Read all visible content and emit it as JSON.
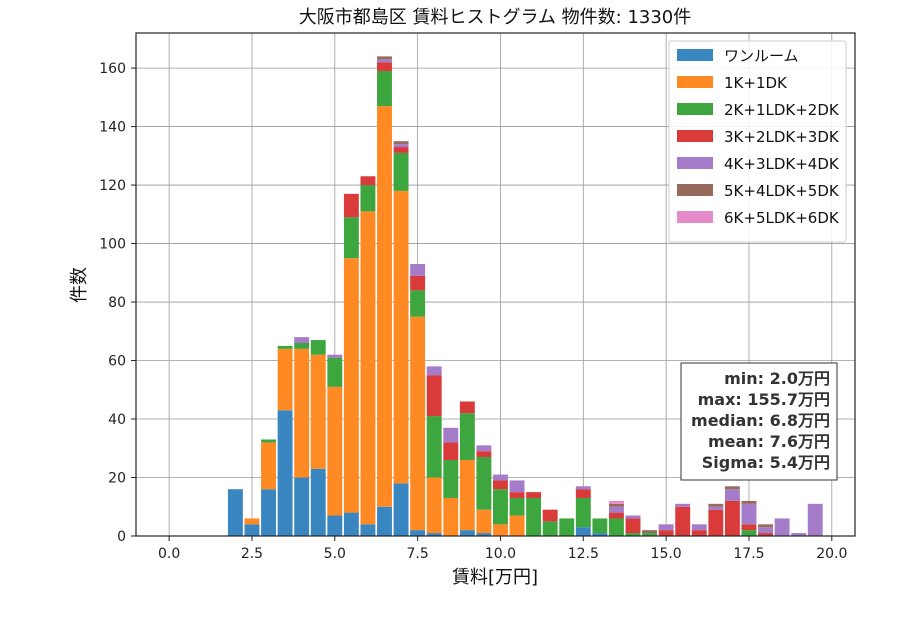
{
  "chart_data": {
    "type": "bar",
    "stacked": true,
    "title": "大阪市都島区 賃料ヒストグラム  物件数: 1330件",
    "xlabel": "賃料[万円]",
    "ylabel": "件数",
    "xlim": [
      -1.0,
      20.7
    ],
    "ylim": [
      0,
      172
    ],
    "xticks": [
      "0.0",
      "2.5",
      "5.0",
      "7.5",
      "10.0",
      "12.5",
      "15.0",
      "17.5",
      "20.0"
    ],
    "yticks": [
      "0",
      "20",
      "40",
      "60",
      "80",
      "100",
      "120",
      "140",
      "160"
    ],
    "grid": true,
    "legend_position": "top-right",
    "bin_width": 0.5,
    "x": [
      2.0,
      2.5,
      3.0,
      3.5,
      4.0,
      4.5,
      5.0,
      5.5,
      6.0,
      6.5,
      7.0,
      7.5,
      8.0,
      8.5,
      9.0,
      9.5,
      10.0,
      10.5,
      11.0,
      11.5,
      12.0,
      12.5,
      13.0,
      13.5,
      14.0,
      14.5,
      15.0,
      15.5,
      16.0,
      16.5,
      17.0,
      17.5,
      18.0,
      18.5,
      19.0,
      19.5
    ],
    "series": [
      {
        "name": "ワンルーム",
        "color": "#3a86c0",
        "values": [
          16,
          4,
          16,
          43,
          20,
          23,
          7,
          8,
          4,
          10,
          18,
          2,
          1,
          0,
          2,
          1,
          0,
          0,
          0,
          0,
          0,
          3,
          1,
          0,
          0,
          0,
          0,
          0,
          0,
          0,
          0,
          0,
          0,
          0,
          0,
          0
        ]
      },
      {
        "name": "1K+1DK",
        "color": "#ff8a24",
        "values": [
          0,
          2,
          16,
          21,
          44,
          39,
          44,
          87,
          107,
          137,
          100,
          73,
          19,
          13,
          24,
          8,
          4,
          7,
          0,
          0,
          0,
          0,
          0,
          0,
          0,
          0,
          0,
          0,
          0,
          0,
          0,
          0,
          0,
          0,
          0,
          0
        ]
      },
      {
        "name": "2K+1LDK+2DK",
        "color": "#3ea63e",
        "values": [
          0,
          0,
          1,
          1,
          2,
          5,
          10,
          14,
          9,
          12,
          13,
          9,
          21,
          13,
          16,
          18,
          12,
          6,
          13,
          5,
          6,
          10,
          5,
          6,
          1,
          1,
          0,
          0,
          0,
          0,
          0,
          2,
          0,
          0,
          0,
          0
        ]
      },
      {
        "name": "3K+2LDK+3DK",
        "color": "#d93a3a",
        "values": [
          0,
          0,
          0,
          0,
          0,
          0,
          0,
          8,
          3,
          3,
          2,
          5,
          14,
          6,
          4,
          2,
          3,
          2,
          2,
          4,
          0,
          3,
          0,
          2,
          5,
          0,
          2,
          10,
          2,
          9,
          12,
          2,
          1,
          0,
          0,
          0
        ]
      },
      {
        "name": "4K+3LDK+4DK",
        "color": "#a57cc9",
        "values": [
          0,
          0,
          0,
          0,
          2,
          0,
          1,
          0,
          0,
          1,
          1,
          4,
          3,
          5,
          0,
          2,
          2,
          4,
          0,
          0,
          0,
          1,
          0,
          2,
          1,
          0,
          2,
          1,
          2,
          1,
          4,
          7,
          2,
          6,
          1,
          11
        ]
      },
      {
        "name": "5K+4LDK+5DK",
        "color": "#976b5c",
        "values": [
          0,
          0,
          0,
          0,
          0,
          0,
          0,
          0,
          0,
          1,
          1,
          0,
          0,
          0,
          0,
          0,
          0,
          0,
          0,
          0,
          0,
          0,
          0,
          1,
          0,
          1,
          0,
          0,
          0,
          1,
          1,
          1,
          1,
          0,
          0,
          0
        ]
      },
      {
        "name": "6K+5LDK+6DK",
        "color": "#e58bcb",
        "values": [
          0,
          0,
          0,
          0,
          0,
          0,
          0,
          0,
          0,
          0,
          0,
          0,
          0,
          0,
          0,
          0,
          0,
          0,
          0,
          0,
          0,
          0,
          0,
          1,
          0,
          0,
          0,
          0,
          0,
          0,
          0,
          0,
          0,
          0,
          0,
          0
        ]
      }
    ],
    "stats": {
      "min": "min: 2.0万円",
      "max": "max: 155.7万円",
      "median": "median: 6.8万円",
      "mean": "mean: 7.6万円",
      "sigma": "Sigma: 5.4万円"
    }
  }
}
